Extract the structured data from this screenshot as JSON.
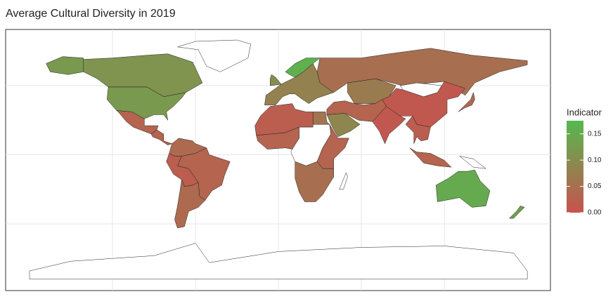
{
  "chart_data": {
    "type": "choropleth",
    "title": "Average Cultural Diversity in 2019",
    "legend_title": "Indicator",
    "values": [
      0.11,
      0.12,
      0.03,
      0.03,
      0.04,
      0.03,
      0.02,
      0.04,
      0.05,
      0.07,
      0.01,
      0.01,
      0.16,
      0.08,
      0.1,
      0.02,
      0.06,
      0.09,
      0.03,
      0.03,
      0.03,
      0.05,
      0.15,
      0.13,
      0.04,
      0.03,
      0.02
    ],
    "clim": [
      0,
      0.175
    ],
    "cticks": [
      {
        "value": 0,
        "label": "0.00"
      },
      0.05,
      {
        "value": 0.1,
        "label": "0.10"
      },
      0.15
    ],
    "colors": [
      "#c8524f",
      "#55b94f"
    ],
    "grid": true
  }
}
